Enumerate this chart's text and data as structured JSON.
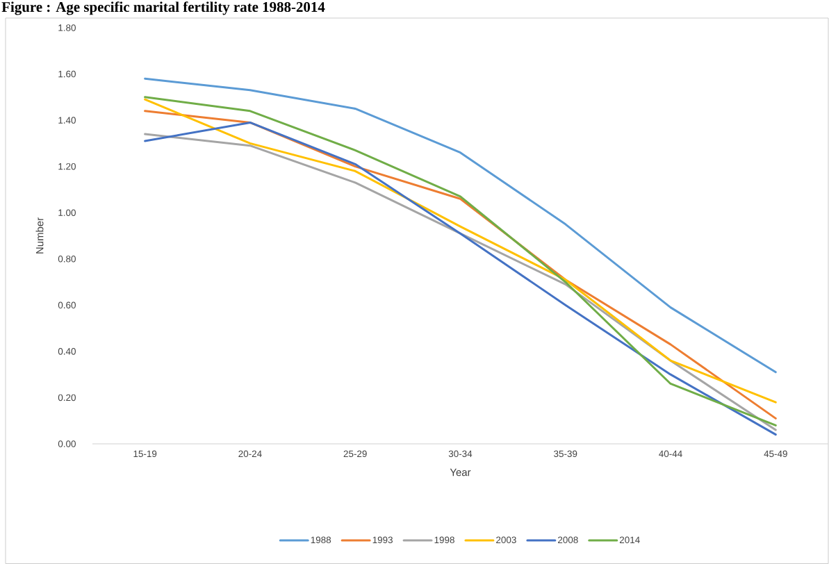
{
  "chart_data": {
    "type": "line",
    "title": "Figure : Age specific marital fertility rate 1988-2014",
    "xlabel": "Year",
    "ylabel": "Number",
    "categories": [
      "15-19",
      "20-24",
      "25-29",
      "30-34",
      "35-39",
      "40-44",
      "45-49"
    ],
    "series": [
      {
        "name": "1988",
        "color": "#5b9bd5",
        "values": [
          1.58,
          1.53,
          1.45,
          1.26,
          0.95,
          0.59,
          0.31
        ]
      },
      {
        "name": "1993",
        "color": "#ed7d31",
        "values": [
          1.44,
          1.39,
          1.2,
          1.06,
          0.71,
          0.43,
          0.11
        ]
      },
      {
        "name": "1998",
        "color": "#a5a5a5",
        "values": [
          1.34,
          1.29,
          1.13,
          0.91,
          0.69,
          0.36,
          0.06
        ]
      },
      {
        "name": "2003",
        "color": "#ffc000",
        "values": [
          1.49,
          1.3,
          1.18,
          0.94,
          0.71,
          0.36,
          0.18
        ]
      },
      {
        "name": "2008",
        "color": "#4472c4",
        "values": [
          1.31,
          1.39,
          1.21,
          0.91,
          0.6,
          0.3,
          0.04
        ]
      },
      {
        "name": "2014",
        "color": "#70ad47",
        "values": [
          1.5,
          1.44,
          1.27,
          1.07,
          0.7,
          0.26,
          0.08
        ]
      }
    ],
    "ylim": [
      0,
      1.8
    ],
    "yticks": [
      {
        "value": 0,
        "label": "0.00"
      },
      {
        "value": 0.2,
        "label": "0.20"
      },
      {
        "value": 0.4,
        "label": "0.40"
      },
      {
        "value": 0.6,
        "label": "0.60"
      },
      {
        "value": 0.8,
        "label": "0.80"
      },
      {
        "value": 1.0,
        "label": "1.00"
      },
      {
        "value": 1.2,
        "label": "1.20"
      },
      {
        "value": 1.4,
        "label": "1.40"
      },
      {
        "value": 1.6,
        "label": "1.60"
      },
      {
        "value": 1.8,
        "label": "1.80"
      }
    ],
    "legend": "bottom",
    "line_style": "solid",
    "grid": false
  }
}
